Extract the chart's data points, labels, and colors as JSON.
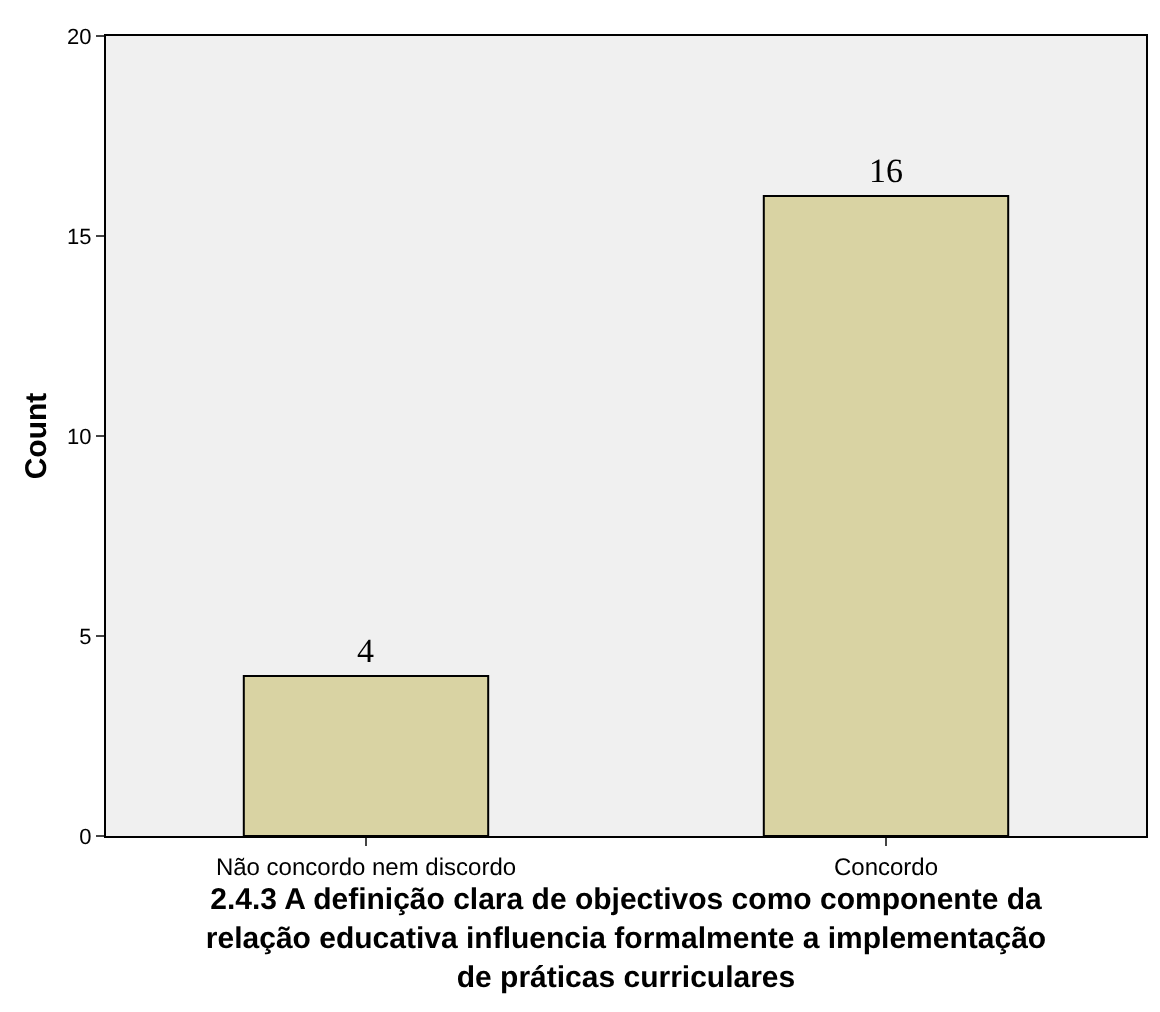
{
  "chart_data": {
    "type": "bar",
    "categories": [
      "Não concordo nem discordo",
      "Concordo"
    ],
    "values": [
      4,
      16
    ],
    "color": "#d9d3a3",
    "xlabel": "2.4.3 A definição clara de objectivos como componente da\nrelação educativa influencia formalmente a implementação\nde práticas curriculares",
    "ylabel": "Count",
    "ylim": [
      0,
      20
    ],
    "yticks": [
      0,
      5,
      10,
      15,
      20
    ],
    "data_labels": true,
    "grid": false,
    "legend": false
  }
}
